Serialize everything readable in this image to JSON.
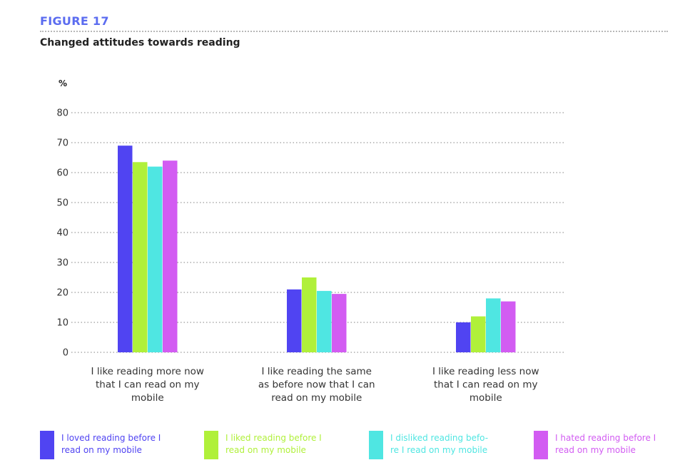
{
  "figure": {
    "label": "FIGURE 17",
    "title": "Changed attitudes towards reading"
  },
  "chart_data": {
    "type": "bar",
    "ylabel": "%",
    "ylim": [
      0,
      80
    ],
    "yticks": [
      0,
      10,
      20,
      30,
      40,
      50,
      60,
      70,
      80
    ],
    "grid": true,
    "categories": [
      [
        "I like reading more now",
        "that I can read on my",
        "mobile"
      ],
      [
        "I like reading the same",
        "as before now that I can",
        "read on my mobile"
      ],
      [
        "I like reading less now",
        "that I can read on my",
        "mobile"
      ]
    ],
    "series": [
      {
        "name": [
          "I loved reading before I",
          "read on my mobile"
        ],
        "color": "#5044f2",
        "values": [
          69,
          21,
          10
        ]
      },
      {
        "name": [
          "I liked reading before I",
          "read on my mobile"
        ],
        "color": "#b0f03a",
        "values": [
          63.5,
          25,
          12
        ]
      },
      {
        "name": [
          "I disliked reading befo-",
          "re I read on my mobile"
        ],
        "color": "#4fe6e2",
        "values": [
          62,
          20.5,
          18
        ]
      },
      {
        "name": [
          "I hated reading before I",
          "read on my mobile"
        ],
        "color": "#d25cf2",
        "values": [
          64,
          19.5,
          17
        ]
      }
    ],
    "legend_position": "bottom"
  }
}
